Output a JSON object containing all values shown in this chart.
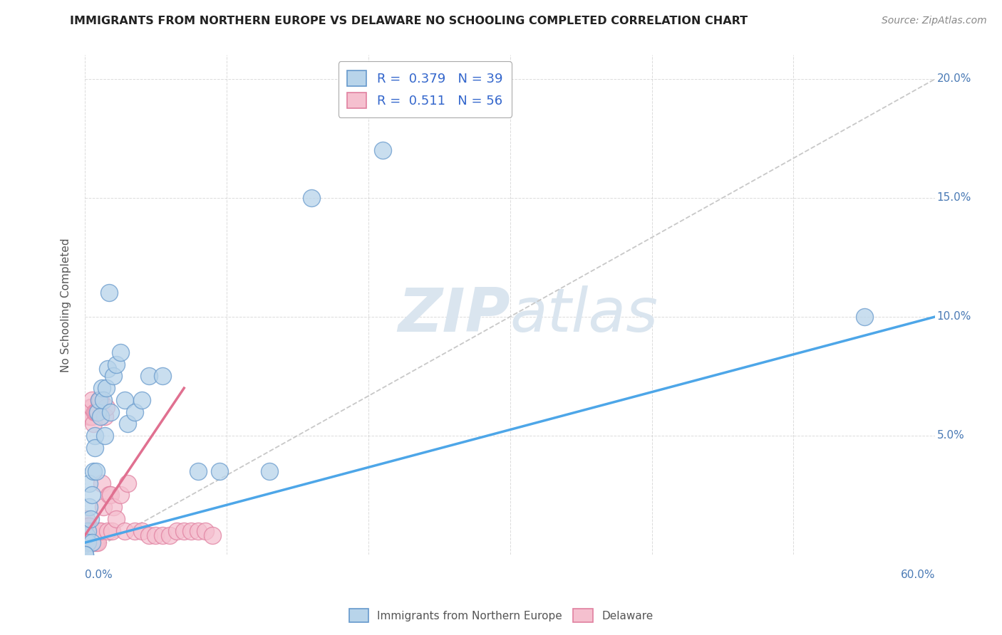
{
  "title": "IMMIGRANTS FROM NORTHERN EUROPE VS DELAWARE NO SCHOOLING COMPLETED CORRELATION CHART",
  "source": "Source: ZipAtlas.com",
  "ylabel": "No Schooling Completed",
  "xlim": [
    0.0,
    0.6
  ],
  "ylim": [
    0.0,
    0.21
  ],
  "xticks": [
    0.0,
    0.1,
    0.2,
    0.3,
    0.4,
    0.5,
    0.6
  ],
  "yticks": [
    0.0,
    0.05,
    0.1,
    0.15,
    0.2
  ],
  "right_ytick_labels": [
    "",
    "5.0%",
    "10.0%",
    "15.0%",
    "20.0%"
  ],
  "bottom_xtick_labels": [
    "0.0%",
    "",
    "",
    "",
    "",
    "",
    "60.0%"
  ],
  "blue_R": 0.379,
  "blue_N": 39,
  "pink_R": 0.511,
  "pink_N": 56,
  "blue_color": "#b8d4ea",
  "blue_edge_color": "#6699cc",
  "pink_color": "#f5c0cf",
  "pink_edge_color": "#e080a0",
  "blue_line_color": "#4da6e8",
  "pink_line_color": "#e07090",
  "diag_line_color": "#c8c8c8",
  "watermark_color": "#dae5ef",
  "background_color": "#ffffff",
  "grid_color": "#cccccc",
  "blue_scatter_x": [
    0.001,
    0.002,
    0.002,
    0.003,
    0.003,
    0.004,
    0.005,
    0.005,
    0.006,
    0.007,
    0.007,
    0.008,
    0.009,
    0.01,
    0.011,
    0.012,
    0.013,
    0.014,
    0.015,
    0.016,
    0.017,
    0.018,
    0.02,
    0.022,
    0.025,
    0.028,
    0.03,
    0.035,
    0.04,
    0.045,
    0.055,
    0.08,
    0.095,
    0.13,
    0.16,
    0.21,
    0.55,
    0.0,
    0.0
  ],
  "blue_scatter_y": [
    0.008,
    0.01,
    0.005,
    0.02,
    0.03,
    0.015,
    0.025,
    0.005,
    0.035,
    0.05,
    0.045,
    0.035,
    0.06,
    0.065,
    0.058,
    0.07,
    0.065,
    0.05,
    0.07,
    0.078,
    0.11,
    0.06,
    0.075,
    0.08,
    0.085,
    0.065,
    0.055,
    0.06,
    0.065,
    0.075,
    0.075,
    0.035,
    0.035,
    0.035,
    0.15,
    0.17,
    0.1,
    0.0,
    0.0
  ],
  "pink_scatter_x": [
    0.001,
    0.001,
    0.001,
    0.002,
    0.002,
    0.002,
    0.003,
    0.003,
    0.003,
    0.003,
    0.004,
    0.004,
    0.004,
    0.005,
    0.005,
    0.005,
    0.005,
    0.006,
    0.006,
    0.006,
    0.007,
    0.007,
    0.007,
    0.008,
    0.008,
    0.009,
    0.009,
    0.01,
    0.01,
    0.011,
    0.011,
    0.012,
    0.013,
    0.014,
    0.015,
    0.016,
    0.017,
    0.018,
    0.019,
    0.02,
    0.022,
    0.025,
    0.028,
    0.03,
    0.035,
    0.04,
    0.045,
    0.05,
    0.055,
    0.06,
    0.065,
    0.07,
    0.075,
    0.08,
    0.085,
    0.09
  ],
  "pink_scatter_y": [
    0.005,
    0.01,
    0.015,
    0.008,
    0.012,
    0.06,
    0.005,
    0.008,
    0.012,
    0.058,
    0.01,
    0.058,
    0.062,
    0.005,
    0.058,
    0.062,
    0.065,
    0.005,
    0.01,
    0.055,
    0.005,
    0.01,
    0.06,
    0.005,
    0.06,
    0.005,
    0.06,
    0.01,
    0.065,
    0.01,
    0.065,
    0.03,
    0.02,
    0.058,
    0.062,
    0.01,
    0.025,
    0.025,
    0.01,
    0.02,
    0.015,
    0.025,
    0.01,
    0.03,
    0.01,
    0.01,
    0.008,
    0.008,
    0.008,
    0.008,
    0.01,
    0.01,
    0.01,
    0.01,
    0.01,
    0.008
  ],
  "blue_line_x": [
    0.0,
    0.6
  ],
  "blue_line_y": [
    0.005,
    0.1
  ],
  "pink_line_x": [
    0.0,
    0.07
  ],
  "pink_line_y": [
    0.008,
    0.07
  ]
}
